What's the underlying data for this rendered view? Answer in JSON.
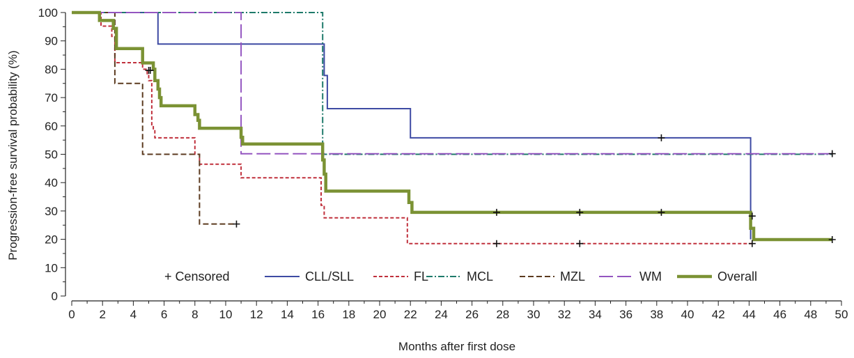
{
  "chart_data": {
    "type": "line",
    "step": true,
    "xlabel": "Months after first dose",
    "ylabel": "Progression-free survival probability (%)",
    "xlim": [
      0,
      50
    ],
    "ylim": [
      0,
      100
    ],
    "xticks": [
      "0",
      "2",
      "4",
      "6",
      "8",
      "10",
      "12",
      "14",
      "16",
      "18",
      "20",
      "22",
      "24",
      "26",
      "28",
      "30",
      "32",
      "34",
      "36",
      "38",
      "40",
      "42",
      "44",
      "46",
      "48",
      "50"
    ],
    "yticks": [
      "0",
      "10",
      "20",
      "30",
      "40",
      "50",
      "60",
      "70",
      "80",
      "90",
      "100"
    ],
    "grid": false,
    "legend_position": "bottom",
    "legend": [
      {
        "label": "+ Censored",
        "kind": "censor"
      },
      {
        "label": "CLL/SLL",
        "series": "CLL/SLL"
      },
      {
        "label": "FL",
        "series": "FL"
      },
      {
        "label": "MCL",
        "series": "MCL"
      },
      {
        "label": "MZL",
        "series": "MZL"
      },
      {
        "label": "WM",
        "series": "WM"
      },
      {
        "label": "Overall",
        "series": "Overall"
      }
    ],
    "series": [
      {
        "name": "CLL/SLL",
        "color": "#3d4aa3",
        "dash": "",
        "points": [
          [
            0,
            100
          ],
          [
            5.6,
            100
          ],
          [
            5.6,
            88.9
          ],
          [
            16.4,
            88.9
          ],
          [
            16.4,
            77.8
          ],
          [
            16.6,
            77.8
          ],
          [
            16.6,
            66.1
          ],
          [
            22,
            66.1
          ],
          [
            22,
            55.8
          ],
          [
            44.1,
            55.8
          ],
          [
            44.1,
            20
          ]
        ],
        "censored": [
          [
            38.3,
            55.8
          ]
        ]
      },
      {
        "name": "FL",
        "color": "#c0303c",
        "dash": "",
        "points": [
          [
            0,
            100
          ],
          [
            1.9,
            100
          ],
          [
            1.9,
            95.2
          ],
          [
            2.6,
            95.2
          ],
          [
            2.6,
            91.6
          ],
          [
            2.8,
            91.6
          ],
          [
            2.8,
            82.3
          ],
          [
            4.6,
            82.3
          ],
          [
            4.6,
            80
          ],
          [
            4.9,
            80
          ],
          [
            4.9,
            77.8
          ],
          [
            5,
            77.8
          ],
          [
            5,
            76
          ],
          [
            5.2,
            76
          ],
          [
            5.2,
            60
          ],
          [
            5.3,
            60
          ],
          [
            5.3,
            59
          ],
          [
            5.4,
            59
          ],
          [
            5.4,
            55.8
          ],
          [
            8,
            55.8
          ],
          [
            8,
            50
          ],
          [
            8.3,
            50
          ],
          [
            8.3,
            46.5
          ],
          [
            11,
            46.5
          ],
          [
            11,
            41.7
          ],
          [
            16.2,
            41.7
          ],
          [
            16.2,
            32
          ],
          [
            16.4,
            32
          ],
          [
            16.4,
            27.6
          ],
          [
            21.8,
            27.6
          ],
          [
            21.8,
            18.5
          ],
          [
            44.2,
            18.5
          ]
        ],
        "censored": [
          [
            5.1,
            79.6
          ],
          [
            27.6,
            18.5
          ],
          [
            33,
            18.5
          ],
          [
            44.2,
            18.5
          ]
        ]
      },
      {
        "name": "MCL",
        "color": "#1e7a6a",
        "dash": "",
        "points": [
          [
            0,
            100
          ],
          [
            16.3,
            100
          ],
          [
            16.3,
            50
          ],
          [
            49.4,
            50
          ]
        ],
        "censored": []
      },
      {
        "name": "MZL",
        "color": "#5b3a1f",
        "dash": "",
        "points": [
          [
            0,
            100
          ],
          [
            2.8,
            100
          ],
          [
            2.8,
            75
          ],
          [
            4.6,
            75
          ],
          [
            4.6,
            50
          ],
          [
            8.3,
            50
          ],
          [
            8.3,
            25.4
          ],
          [
            10.7,
            25.4
          ]
        ],
        "censored": [
          [
            10.7,
            25.4
          ]
        ]
      },
      {
        "name": "WM",
        "color": "#9455c0",
        "dash": "",
        "points": [
          [
            0,
            100
          ],
          [
            11,
            100
          ],
          [
            11,
            50.2
          ],
          [
            49.4,
            50.2
          ]
        ],
        "censored": [
          [
            49.4,
            50.2
          ]
        ]
      },
      {
        "name": "Overall",
        "color": "#7b9234",
        "dash": "",
        "points": [
          [
            0,
            100
          ],
          [
            1.8,
            100
          ],
          [
            1.8,
            97.2
          ],
          [
            2.7,
            97.2
          ],
          [
            2.7,
            94.4
          ],
          [
            2.9,
            94.4
          ],
          [
            2.9,
            87.3
          ],
          [
            4.6,
            87.3
          ],
          [
            4.6,
            82.2
          ],
          [
            5.3,
            82.2
          ],
          [
            5.3,
            80
          ],
          [
            5.4,
            80
          ],
          [
            5.4,
            76
          ],
          [
            5.6,
            76
          ],
          [
            5.6,
            73
          ],
          [
            5.7,
            73
          ],
          [
            5.7,
            70
          ],
          [
            5.8,
            70
          ],
          [
            5.8,
            67.1
          ],
          [
            8,
            67.1
          ],
          [
            8,
            64
          ],
          [
            8.2,
            64
          ],
          [
            8.2,
            62
          ],
          [
            8.3,
            62
          ],
          [
            8.3,
            59.2
          ],
          [
            11,
            59.2
          ],
          [
            11,
            56
          ],
          [
            11.1,
            56
          ],
          [
            11.1,
            53.6
          ],
          [
            16.3,
            53.6
          ],
          [
            16.3,
            48
          ],
          [
            16.4,
            48
          ],
          [
            16.4,
            43
          ],
          [
            16.5,
            43
          ],
          [
            16.5,
            37
          ],
          [
            21.9,
            37
          ],
          [
            21.9,
            33
          ],
          [
            22.1,
            33
          ],
          [
            22.1,
            29.5
          ],
          [
            44.1,
            29.5
          ],
          [
            44.1,
            23.9
          ],
          [
            44.3,
            23.9
          ],
          [
            44.3,
            19.9
          ],
          [
            49.4,
            19.9
          ]
        ],
        "censored": [
          [
            5,
            79.6
          ],
          [
            27.6,
            29.5
          ],
          [
            33,
            29.5
          ],
          [
            38.3,
            29.5
          ],
          [
            44.2,
            28.2
          ],
          [
            49.4,
            19.9
          ]
        ]
      }
    ]
  }
}
